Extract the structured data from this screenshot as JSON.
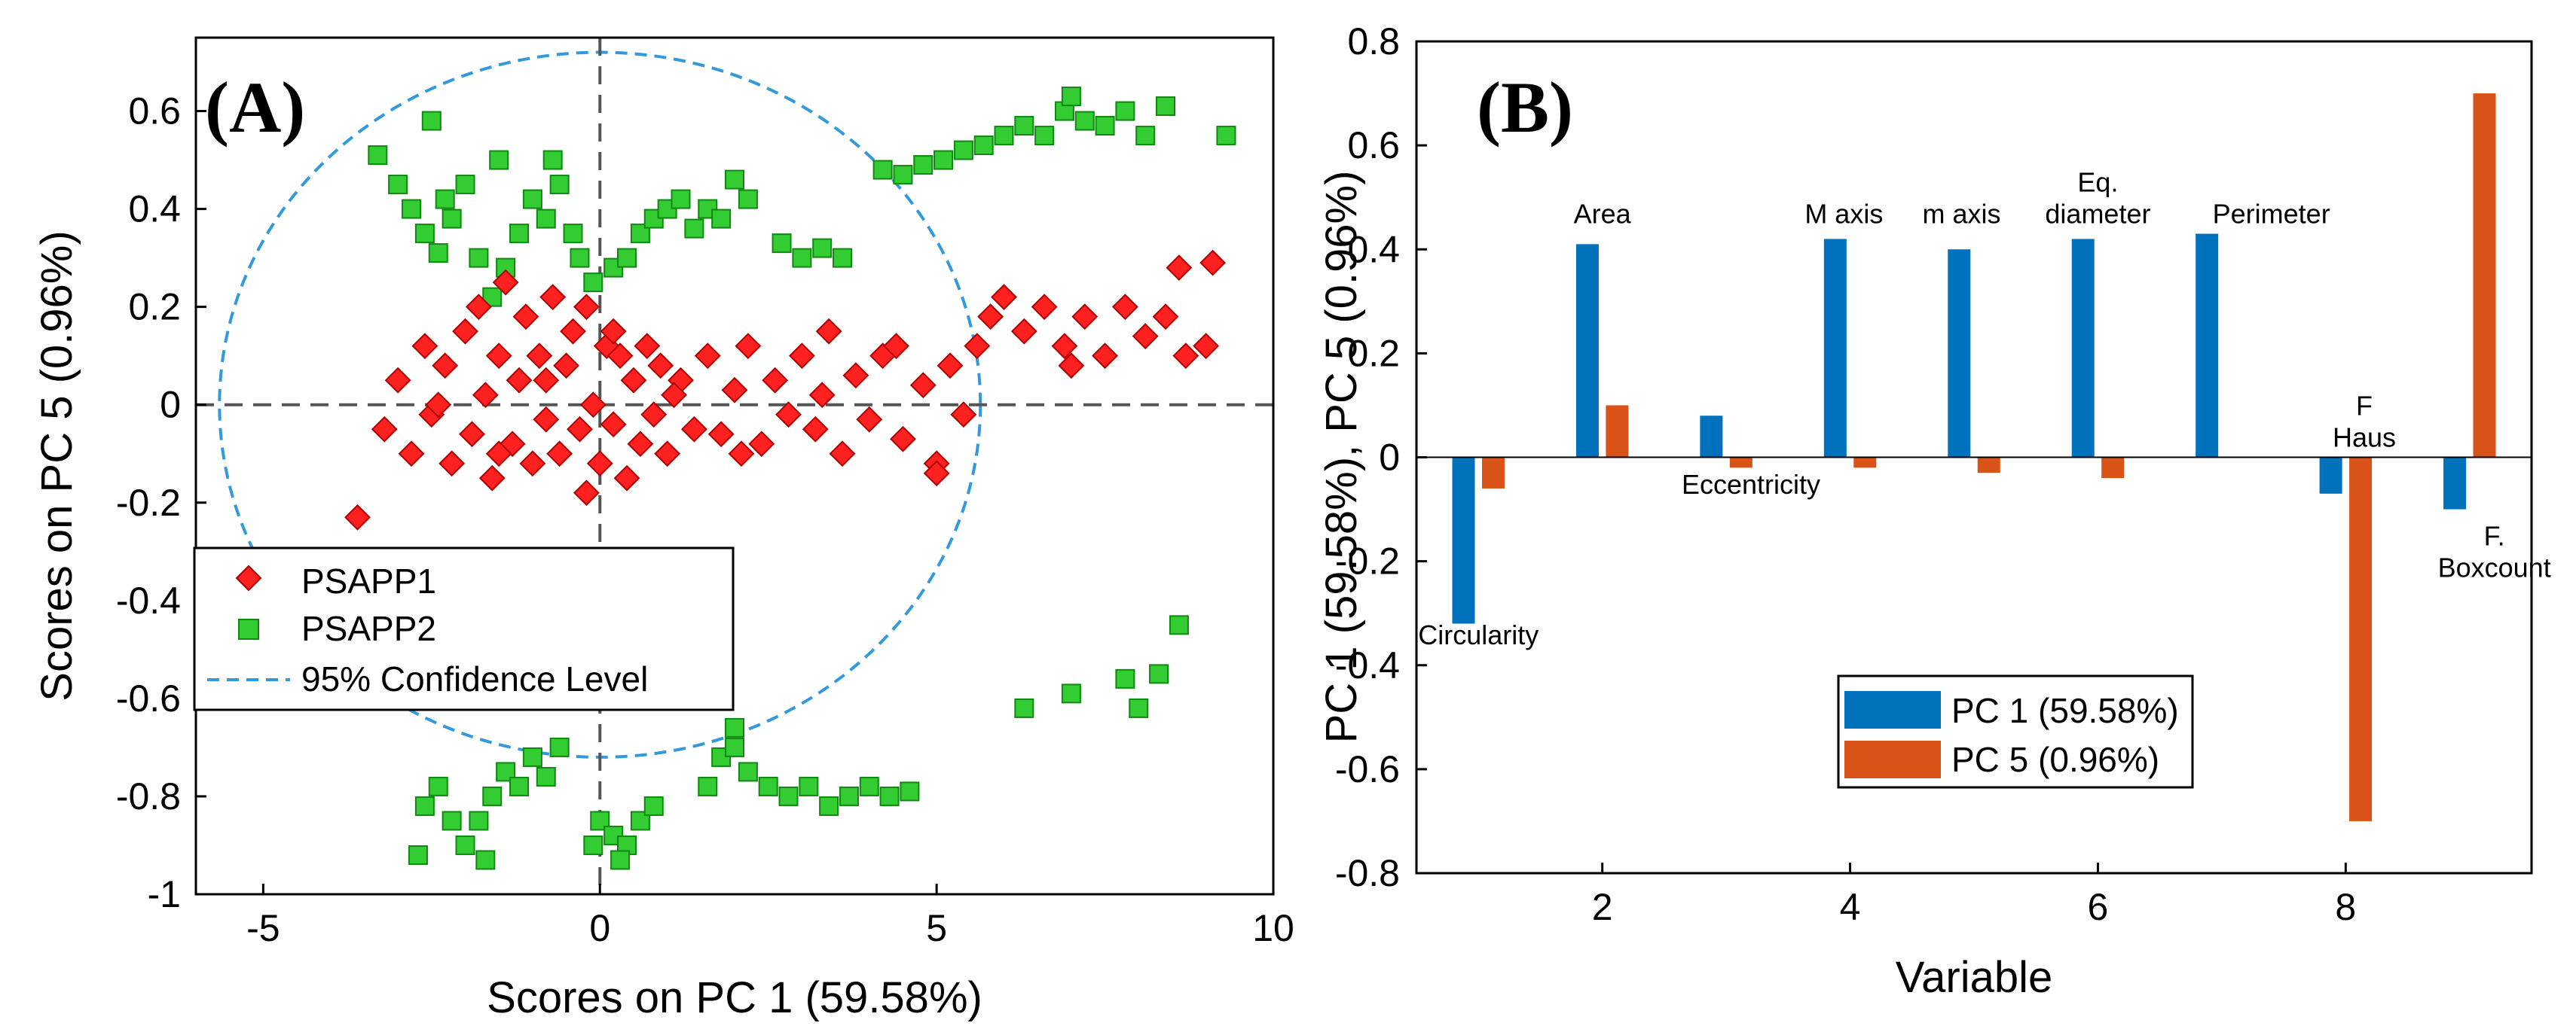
{
  "chart_data": [
    {
      "panel_label": "(A)",
      "type": "scatter",
      "xlabel": "Scores on PC 1 (59.58%)",
      "ylabel": "Scores on PC 5 (0.96%)",
      "xlim": [
        -6,
        10
      ],
      "ylim": [
        -1,
        0.75
      ],
      "xticks": [
        -5,
        0,
        5,
        10
      ],
      "yticks": [
        -1,
        -0.8,
        -0.6,
        -0.4,
        -0.2,
        0,
        0.2,
        0.4,
        0.6
      ],
      "xtick_labels": [
        "-5",
        "0",
        "5",
        "10"
      ],
      "ytick_labels": [
        "-1",
        "-0.8",
        "-0.6",
        "-0.4",
        "-0.2",
        "0",
        "0.2",
        "0.4",
        "0.6"
      ],
      "legend_position": "left",
      "series": [
        {
          "name": "PSAPP1",
          "marker": "diamond",
          "color": "#ff2020",
          "points": [
            [
              -3.2,
              -0.05
            ],
            [
              -3.0,
              0.05
            ],
            [
              -2.8,
              -0.1
            ],
            [
              -2.6,
              0.12
            ],
            [
              -2.5,
              -0.02
            ],
            [
              -2.3,
              0.08
            ],
            [
              -2.2,
              -0.12
            ],
            [
              -2.0,
              0.15
            ],
            [
              -1.9,
              -0.06
            ],
            [
              -1.8,
              0.2
            ],
            [
              -1.7,
              0.02
            ],
            [
              -1.6,
              -0.15
            ],
            [
              -1.5,
              0.1
            ],
            [
              -1.4,
              0.25
            ],
            [
              -1.3,
              -0.08
            ],
            [
              -1.2,
              0.05
            ],
            [
              -1.1,
              0.18
            ],
            [
              -1.0,
              -0.12
            ],
            [
              -0.9,
              0.1
            ],
            [
              -0.8,
              -0.03
            ],
            [
              -0.7,
              0.22
            ],
            [
              -0.6,
              -0.1
            ],
            [
              -0.5,
              0.08
            ],
            [
              -0.4,
              0.15
            ],
            [
              -0.3,
              -0.05
            ],
            [
              -0.2,
              0.2
            ],
            [
              -0.1,
              0.0
            ],
            [
              0.0,
              -0.12
            ],
            [
              0.1,
              0.12
            ],
            [
              0.2,
              -0.04
            ],
            [
              0.3,
              0.1
            ],
            [
              0.4,
              -0.15
            ],
            [
              0.5,
              0.05
            ],
            [
              0.6,
              -0.08
            ],
            [
              0.7,
              0.12
            ],
            [
              0.8,
              -0.02
            ],
            [
              0.9,
              0.08
            ],
            [
              1.0,
              -0.1
            ],
            [
              1.2,
              0.05
            ],
            [
              1.4,
              -0.05
            ],
            [
              1.6,
              0.1
            ],
            [
              1.8,
              -0.06
            ],
            [
              2.0,
              0.03
            ],
            [
              2.2,
              0.12
            ],
            [
              2.4,
              -0.08
            ],
            [
              2.6,
              0.05
            ],
            [
              2.8,
              -0.02
            ],
            [
              3.0,
              0.1
            ],
            [
              3.2,
              -0.05
            ],
            [
              3.4,
              0.15
            ],
            [
              3.6,
              -0.1
            ],
            [
              3.8,
              0.06
            ],
            [
              4.0,
              -0.03
            ],
            [
              4.2,
              0.1
            ],
            [
              4.5,
              -0.07
            ],
            [
              4.8,
              0.04
            ],
            [
              5.0,
              -0.12
            ],
            [
              5.2,
              0.08
            ],
            [
              5.4,
              -0.02
            ],
            [
              5.6,
              0.12
            ],
            [
              5.8,
              0.18
            ],
            [
              6.0,
              0.22
            ],
            [
              6.3,
              0.15
            ],
            [
              6.6,
              0.2
            ],
            [
              6.9,
              0.12
            ],
            [
              7.2,
              0.18
            ],
            [
              7.5,
              0.1
            ],
            [
              7.8,
              0.2
            ],
            [
              8.1,
              0.14
            ],
            [
              8.4,
              0.18
            ],
            [
              8.7,
              0.1
            ],
            [
              9.0,
              0.12
            ],
            [
              -2.4,
              0.0
            ],
            [
              -1.5,
              -0.1
            ],
            [
              -0.8,
              0.05
            ],
            [
              0.2,
              0.15
            ],
            [
              1.1,
              0.02
            ],
            [
              2.1,
              -0.1
            ],
            [
              3.3,
              0.02
            ],
            [
              4.4,
              0.12
            ],
            [
              -3.6,
              -0.23
            ],
            [
              -0.2,
              -0.18
            ],
            [
              5.0,
              -0.14
            ],
            [
              7.0,
              0.08
            ],
            [
              8.6,
              0.28
            ],
            [
              9.1,
              0.29
            ]
          ]
        },
        {
          "name": "PSAPP2",
          "marker": "square",
          "color": "#33cc33",
          "points": [
            [
              -3.3,
              0.51
            ],
            [
              -3.0,
              0.45
            ],
            [
              -2.8,
              0.4
            ],
            [
              -2.6,
              0.35
            ],
            [
              -2.4,
              0.31
            ],
            [
              -2.2,
              0.38
            ],
            [
              -2.0,
              0.45
            ],
            [
              -1.8,
              0.3
            ],
            [
              -1.6,
              0.22
            ],
            [
              -1.4,
              0.28
            ],
            [
              -1.2,
              0.35
            ],
            [
              -1.0,
              0.42
            ],
            [
              -0.8,
              0.38
            ],
            [
              -0.6,
              0.45
            ],
            [
              -0.4,
              0.35
            ],
            [
              -0.3,
              0.3
            ],
            [
              -2.5,
              0.58
            ],
            [
              -2.3,
              0.42
            ],
            [
              -1.5,
              0.5
            ],
            [
              -0.7,
              0.5
            ],
            [
              -0.1,
              0.25
            ],
            [
              0.2,
              0.28
            ],
            [
              0.4,
              0.3
            ],
            [
              0.6,
              0.35
            ],
            [
              0.8,
              0.38
            ],
            [
              1.0,
              0.4
            ],
            [
              1.2,
              0.42
            ],
            [
              1.4,
              0.36
            ],
            [
              1.6,
              0.4
            ],
            [
              1.8,
              0.38
            ],
            [
              2.0,
              0.46
            ],
            [
              2.2,
              0.42
            ],
            [
              3.0,
              0.3
            ],
            [
              3.3,
              0.32
            ],
            [
              3.6,
              0.3
            ],
            [
              2.7,
              0.33
            ],
            [
              4.2,
              0.48
            ],
            [
              4.5,
              0.47
            ],
            [
              4.8,
              0.49
            ],
            [
              5.1,
              0.5
            ],
            [
              5.4,
              0.52
            ],
            [
              5.7,
              0.53
            ],
            [
              6.0,
              0.55
            ],
            [
              6.3,
              0.57
            ],
            [
              6.6,
              0.55
            ],
            [
              6.9,
              0.6
            ],
            [
              7.2,
              0.58
            ],
            [
              7.5,
              0.57
            ],
            [
              7.0,
              0.63
            ],
            [
              7.8,
              0.6
            ],
            [
              8.1,
              0.55
            ],
            [
              8.4,
              0.61
            ],
            [
              9.3,
              0.55
            ],
            [
              -2.6,
              -0.82
            ],
            [
              -2.4,
              -0.78
            ],
            [
              -2.2,
              -0.85
            ],
            [
              -2.0,
              -0.9
            ],
            [
              -1.8,
              -0.85
            ],
            [
              -1.6,
              -0.8
            ],
            [
              -1.4,
              -0.75
            ],
            [
              -1.2,
              -0.78
            ],
            [
              -1.0,
              -0.72
            ],
            [
              -0.8,
              -0.76
            ],
            [
              -0.6,
              -0.7
            ],
            [
              -2.7,
              -0.92
            ],
            [
              -1.7,
              -0.93
            ],
            [
              0.0,
              -0.85
            ],
            [
              0.2,
              -0.88
            ],
            [
              0.4,
              -0.9
            ],
            [
              0.6,
              -0.85
            ],
            [
              0.8,
              -0.82
            ],
            [
              -0.1,
              -0.9
            ],
            [
              0.3,
              -0.93
            ],
            [
              1.6,
              -0.78
            ],
            [
              1.8,
              -0.72
            ],
            [
              2.0,
              -0.7
            ],
            [
              2.2,
              -0.75
            ],
            [
              2.5,
              -0.78
            ],
            [
              2.8,
              -0.8
            ],
            [
              3.1,
              -0.78
            ],
            [
              3.4,
              -0.82
            ],
            [
              3.7,
              -0.8
            ],
            [
              4.0,
              -0.78
            ],
            [
              4.3,
              -0.8
            ],
            [
              4.6,
              -0.79
            ],
            [
              2.0,
              -0.66
            ],
            [
              6.3,
              -0.62
            ],
            [
              7.0,
              -0.59
            ],
            [
              7.8,
              -0.56
            ],
            [
              8.0,
              -0.62
            ],
            [
              8.3,
              -0.55
            ],
            [
              8.6,
              -0.45
            ]
          ]
        }
      ],
      "confidence_ellipse": {
        "name": "95% Confidence Level",
        "color": "#3399dd",
        "center": [
          0,
          0
        ],
        "radii": [
          5.65,
          0.72
        ]
      },
      "reference_lines": [
        {
          "axis": "x",
          "value": 0
        },
        {
          "axis": "y",
          "value": 0
        }
      ]
    },
    {
      "panel_label": "(B)",
      "type": "bar",
      "xlabel": "Variable",
      "ylabel": "PC 1 (59.58%), PC 5 (0.96%)",
      "xlim": [
        0.5,
        9.5
      ],
      "ylim": [
        -0.8,
        0.8
      ],
      "xticks": [
        2,
        4,
        6,
        8
      ],
      "xtick_labels": [
        "2",
        "4",
        "6",
        "8"
      ],
      "yticks": [
        -0.8,
        -0.6,
        -0.4,
        -0.2,
        0,
        0.2,
        0.4,
        0.6,
        0.8
      ],
      "ytick_labels": [
        "-0.8",
        "-0.6",
        "-0.4",
        "-0.2",
        "0",
        "0.2",
        "0.4",
        "0.6",
        "0.8"
      ],
      "legend_position": "bottom-center",
      "categories": [
        1,
        2,
        3,
        4,
        5,
        6,
        7,
        8,
        9
      ],
      "series": [
        {
          "name": "PC 1 (59.58%)",
          "color": "#0072bd",
          "values": [
            -0.32,
            0.41,
            0.08,
            0.42,
            0.4,
            0.42,
            0.43,
            -0.07,
            -0.1
          ]
        },
        {
          "name": "PC 5 (0.96%)",
          "color": "#d95319",
          "values": [
            -0.06,
            0.1,
            -0.02,
            -0.02,
            -0.03,
            -0.04,
            0.0,
            -0.7,
            0.7
          ]
        }
      ],
      "annotations": [
        {
          "lines": [
            "Circularity"
          ],
          "x": 1.0,
          "y": -0.36
        },
        {
          "lines": [
            "Area"
          ],
          "x": 2.0,
          "y": 0.45
        },
        {
          "lines": [
            "Eccentricity"
          ],
          "x": 3.2,
          "y": -0.07
        },
        {
          "lines": [
            "M axis"
          ],
          "x": 3.95,
          "y": 0.45
        },
        {
          "lines": [
            "m axis"
          ],
          "x": 4.9,
          "y": 0.45
        },
        {
          "lines": [
            "Eq.",
            "diameter"
          ],
          "x": 6.0,
          "y": 0.45
        },
        {
          "lines": [
            "Perimeter"
          ],
          "x": 7.4,
          "y": 0.45
        },
        {
          "lines": [
            "F",
            "Haus"
          ],
          "x": 8.15,
          "y": 0.02
        },
        {
          "lines": [
            "F.",
            "Boxcount"
          ],
          "x": 9.2,
          "y": -0.23
        }
      ]
    }
  ]
}
